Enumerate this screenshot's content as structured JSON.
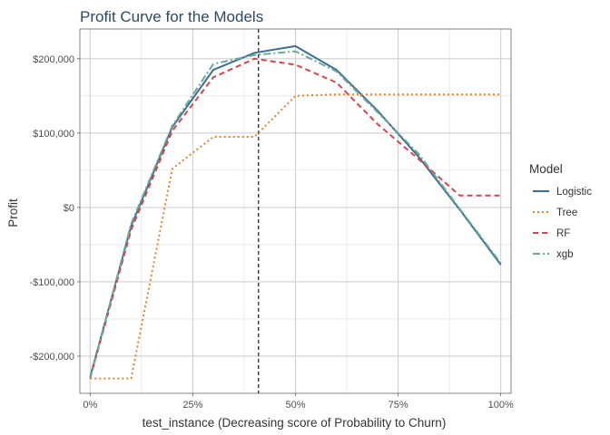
{
  "chart_data": {
    "type": "line",
    "title": "Profit Curve for the Models",
    "xlabel": "test_instance (Decreasing score of Probability to Churn)",
    "ylabel": "Profit",
    "x": [
      0,
      0.1,
      0.2,
      0.3,
      0.4,
      0.5,
      0.6,
      0.7,
      0.8,
      0.9,
      1.0
    ],
    "xlim": [
      -0.025,
      1.025
    ],
    "ylim": [
      -250000,
      240000
    ],
    "x_ticks": [
      {
        "value": 0,
        "label": "0%"
      },
      {
        "value": 0.25,
        "label": "25%"
      },
      {
        "value": 0.5,
        "label": "50%"
      },
      {
        "value": 0.75,
        "label": "75%"
      },
      {
        "value": 1.0,
        "label": "100%"
      }
    ],
    "y_ticks": [
      {
        "value": -200000,
        "label": "-$200,000"
      },
      {
        "value": -100000,
        "label": "-$100,000"
      },
      {
        "value": 0,
        "label": "$0"
      },
      {
        "value": 100000,
        "label": "$100,000"
      },
      {
        "value": 200000,
        "label": "$200,000"
      }
    ],
    "grid": true,
    "legend": {
      "title": "Model",
      "position": "right"
    },
    "reference_line": {
      "axis": "x",
      "value": 0.41,
      "style": "dashed",
      "color": "#000000"
    },
    "series": [
      {
        "name": "Logistic",
        "color": "#3b6f8f",
        "dash": "solid",
        "values": [
          -228000,
          -25000,
          108000,
          185000,
          208000,
          217000,
          185000,
          130000,
          68000,
          -3000,
          -77000
        ]
      },
      {
        "name": "Tree",
        "color": "#e8812a",
        "dash": "dotted",
        "values": [
          -230000,
          -230000,
          52000,
          95000,
          95000,
          150000,
          152000,
          152000,
          152000,
          152000,
          152000
        ]
      },
      {
        "name": "RF",
        "color": "#d9434a",
        "dash": "dashed",
        "values": [
          -230000,
          -30000,
          103000,
          175000,
          200000,
          192000,
          168000,
          112000,
          65000,
          16000,
          16000
        ]
      },
      {
        "name": "xgb",
        "color": "#6aa89a",
        "dash": "dashdot",
        "values": [
          -230000,
          -22000,
          110000,
          193000,
          205000,
          210000,
          183000,
          128000,
          72000,
          -2000,
          -75000
        ]
      }
    ]
  }
}
